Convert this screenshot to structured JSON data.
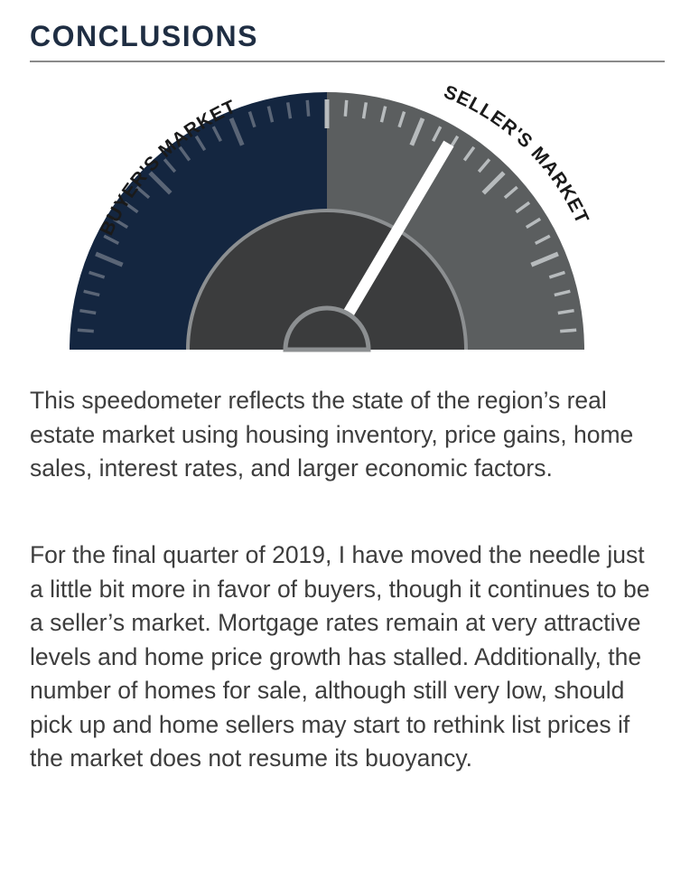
{
  "heading": "CONCLUSIONS",
  "gauge": {
    "left_label": "BUYER'S MARKET",
    "right_label": "SELLER'S MARKET",
    "needle_level": 0.67,
    "colors": {
      "buyer": "#142640",
      "seller": "#5b5e5f",
      "hub": "#3b3c3d",
      "ring": "#8c8f91",
      "tick_light": "#b7bbbd",
      "tick_dark": "#5a6576",
      "needle": "#ffffff"
    }
  },
  "paragraphs": [
    "This speedometer reflects the state of the region’s real estate market using housing inventory, price gains, home sales, interest rates, and larger economic factors.",
    "For the final quarter of 2019, I have moved the needle just a little bit more in favor of buyers, though it continues to be a seller’s market. Mortgage rates remain at very attractive levels and home price growth has stalled. Additionally, the number of homes for sale, although still very low, should pick up and home sellers may start to rethink list prices if the market does not resume its buoyancy."
  ]
}
